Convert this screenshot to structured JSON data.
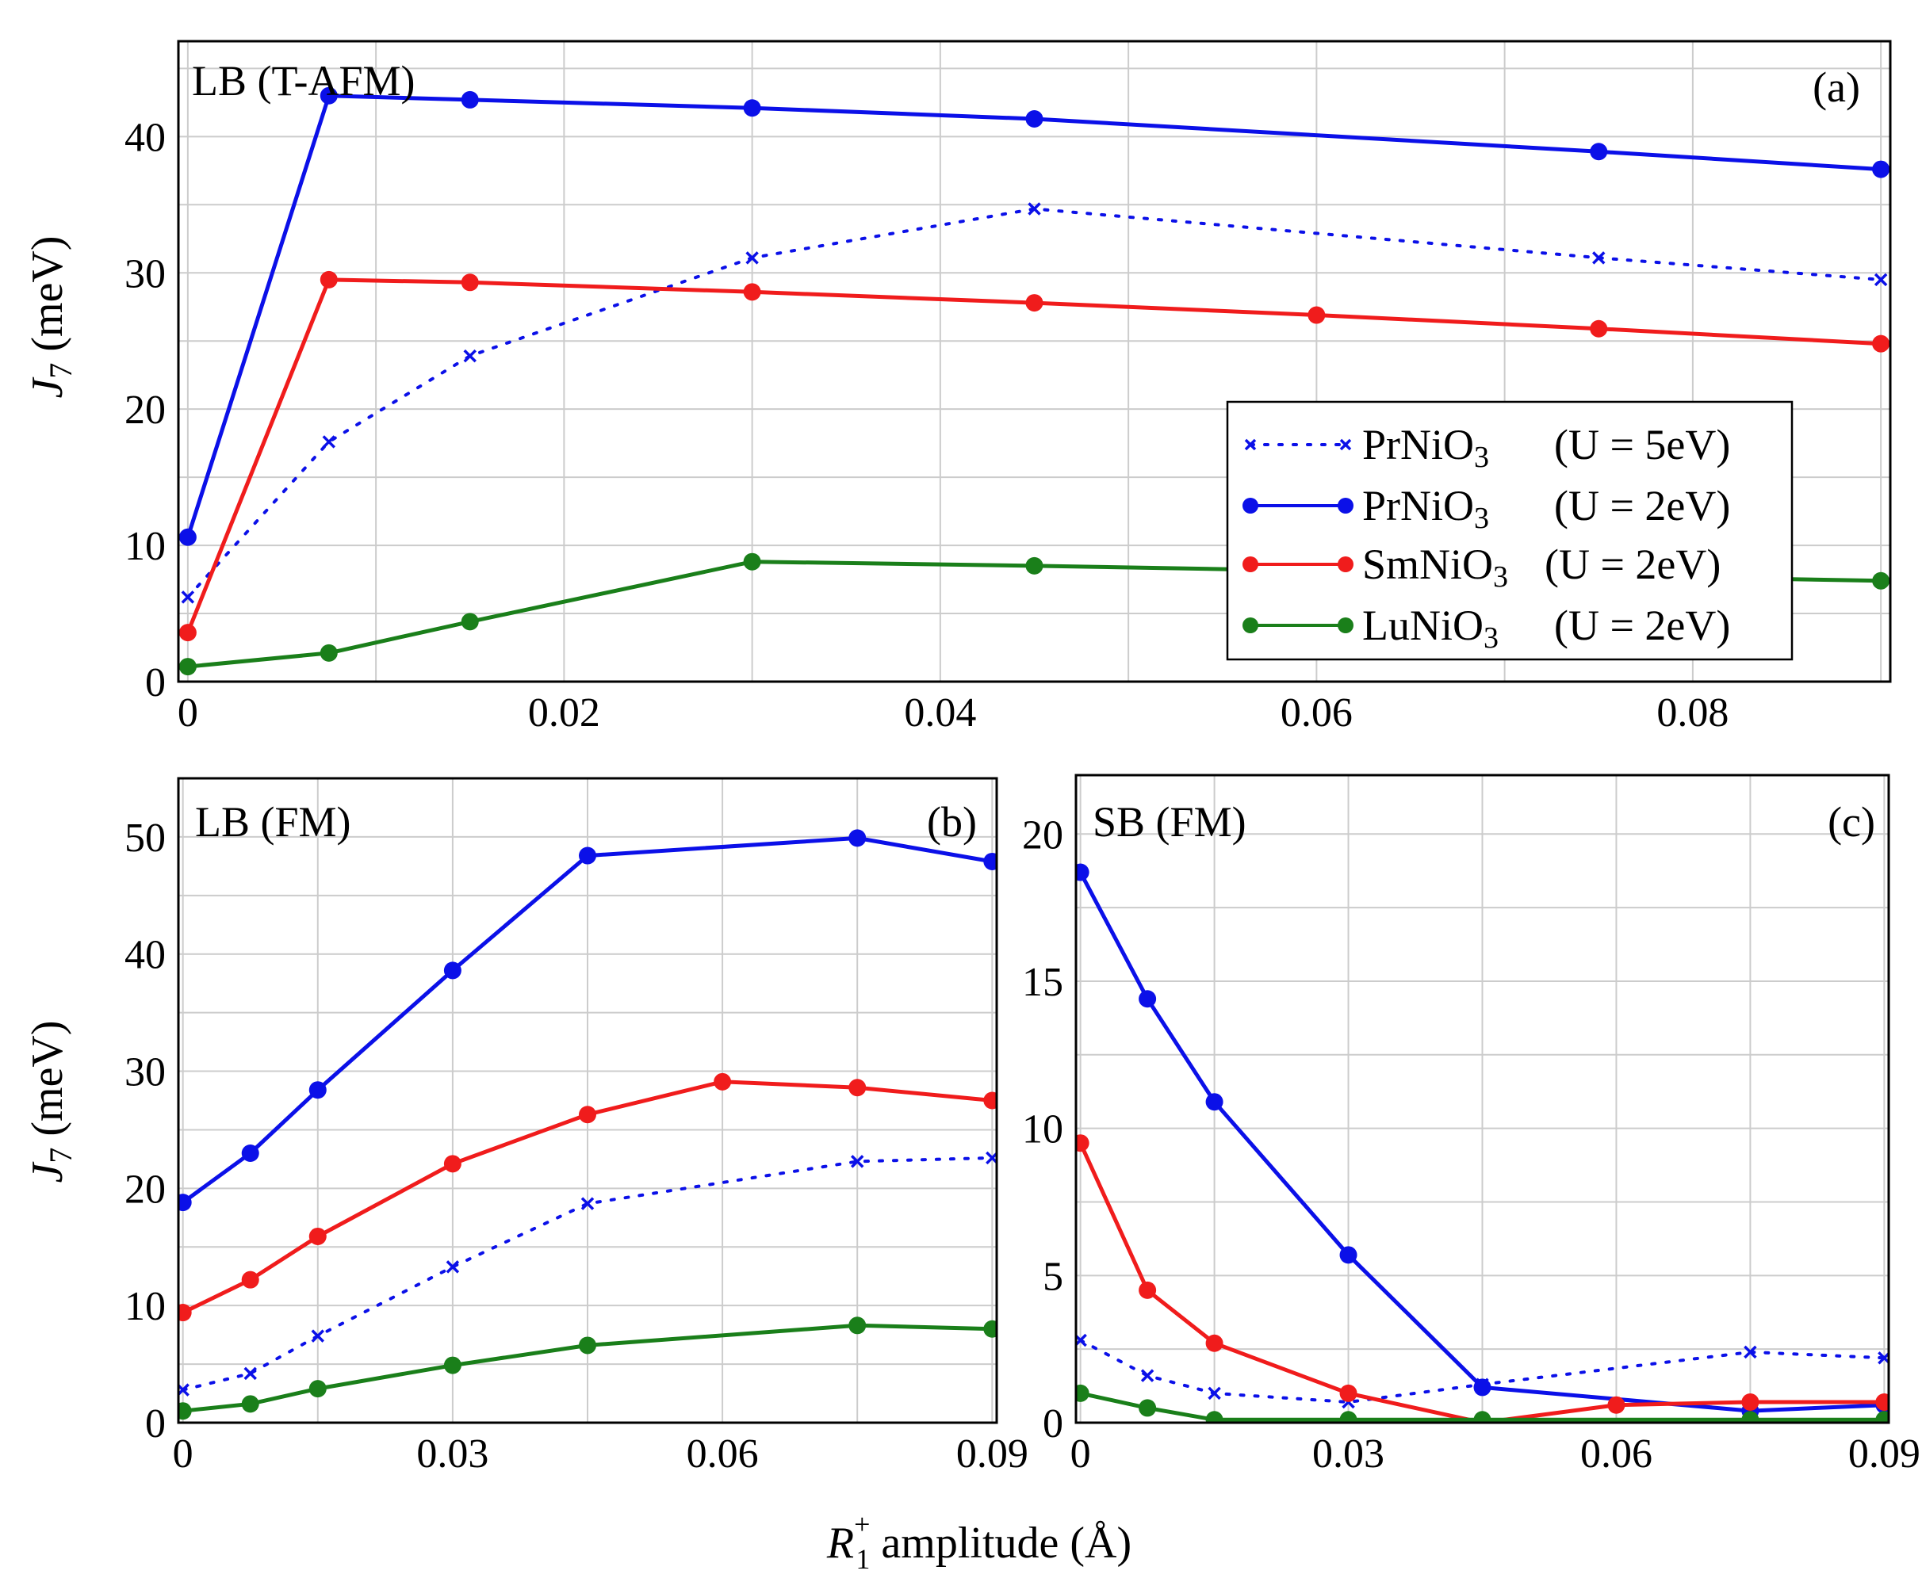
{
  "colors": {
    "blue": "#0b10e8",
    "red": "#f01c1c",
    "green": "#1a7f1a",
    "grid": "#cccccc",
    "frame": "#000000"
  },
  "chart_data": [
    {
      "id": "a",
      "type": "line",
      "panel_label": "(a)",
      "title": "LB (T-AFM)",
      "ylabel": "J7 (meV)",
      "ylabel_sym": "J",
      "ylabel_sub": "7",
      "ylabel_unit": " (meV)",
      "xlim": [
        -0.0005,
        0.0905
      ],
      "ylim": [
        0,
        47
      ],
      "xticks": [
        0,
        0.02,
        0.04,
        0.06,
        0.08
      ],
      "xtick_labels": [
        "0",
        "0.02",
        "0.04",
        "0.06",
        "0.08"
      ],
      "yticks": [
        0,
        10,
        20,
        30,
        40
      ],
      "ytick_labels": [
        "0",
        "10",
        "20",
        "30",
        "40"
      ],
      "xgrid": [
        0,
        0.01,
        0.02,
        0.03,
        0.04,
        0.05,
        0.06,
        0.07,
        0.08,
        0.09
      ],
      "ygrid": [
        0,
        5,
        10,
        15,
        20,
        25,
        30,
        35,
        40,
        45
      ],
      "legend": {
        "position": "lower-right",
        "entries": [
          {
            "name": "PrNiO",
            "sub": "3",
            "cond": "(U = 5eV)",
            "color_key": "blue",
            "style": "dotted",
            "marker": "x"
          },
          {
            "name": "PrNiO",
            "sub": "3",
            "cond": "(U = 2eV)",
            "color_key": "blue",
            "style": "solid",
            "marker": "circle"
          },
          {
            "name": "SmNiO",
            "sub": "3",
            "cond": "(U = 2eV)",
            "color_key": "red",
            "style": "solid",
            "marker": "circle"
          },
          {
            "name": "LuNiO",
            "sub": "3",
            "cond": "(U = 2eV)",
            "color_key": "green",
            "style": "solid",
            "marker": "circle"
          }
        ]
      },
      "series": [
        {
          "name": "PrNiO3 (U = 5eV)",
          "color_key": "blue",
          "style": "dotted",
          "marker": "x",
          "x": [
            0,
            0.0075,
            0.015,
            0.03,
            0.045,
            0.075,
            0.09
          ],
          "y": [
            6.2,
            17.6,
            23.9,
            31.1,
            34.7,
            31.1,
            29.5
          ]
        },
        {
          "name": "PrNiO3 (U = 2eV)",
          "color_key": "blue",
          "style": "solid",
          "marker": "circle",
          "x": [
            0,
            0.0075,
            0.015,
            0.03,
            0.045,
            0.075,
            0.09
          ],
          "y": [
            10.6,
            43.0,
            42.7,
            42.1,
            41.3,
            38.9,
            37.6
          ]
        },
        {
          "name": "SmNiO3 (U = 2eV)",
          "color_key": "red",
          "style": "solid",
          "marker": "circle",
          "x": [
            0,
            0.0075,
            0.015,
            0.03,
            0.045,
            0.06,
            0.075,
            0.09
          ],
          "y": [
            3.6,
            29.5,
            29.3,
            28.6,
            27.8,
            26.9,
            25.9,
            24.8
          ]
        },
        {
          "name": "LuNiO3 (U = 2eV)",
          "color_key": "green",
          "style": "solid",
          "marker": "circle",
          "x": [
            0,
            0.0075,
            0.015,
            0.03,
            0.045,
            0.09
          ],
          "y": [
            1.1,
            2.1,
            4.4,
            8.8,
            8.5,
            7.4
          ]
        }
      ]
    },
    {
      "id": "b",
      "type": "line",
      "panel_label": "(b)",
      "title": "LB (FM)",
      "ylabel": "J7 (meV)",
      "ylabel_sym": "J",
      "ylabel_sub": "7",
      "ylabel_unit": " (meV)",
      "xlim": [
        -0.0005,
        0.0905
      ],
      "ylim": [
        0,
        55
      ],
      "xticks": [
        0,
        0.03,
        0.06,
        0.09
      ],
      "xtick_labels": [
        "0",
        "0.03",
        "0.06",
        "0.09"
      ],
      "yticks": [
        0,
        10,
        20,
        30,
        40,
        50
      ],
      "ytick_labels": [
        "0",
        "10",
        "20",
        "30",
        "40",
        "50"
      ],
      "xgrid": [
        0,
        0.015,
        0.03,
        0.045,
        0.06,
        0.075,
        0.09
      ],
      "ygrid": [
        0,
        5,
        10,
        15,
        20,
        25,
        30,
        35,
        40,
        45,
        50,
        55
      ],
      "series": [
        {
          "name": "PrNiO3 (U = 5eV)",
          "color_key": "blue",
          "style": "dotted",
          "marker": "x",
          "x": [
            0,
            0.0075,
            0.015,
            0.03,
            0.045,
            0.075,
            0.09
          ],
          "y": [
            2.8,
            4.2,
            7.4,
            13.3,
            18.7,
            22.3,
            22.6
          ]
        },
        {
          "name": "PrNiO3 (U = 2eV)",
          "color_key": "blue",
          "style": "solid",
          "marker": "circle",
          "x": [
            0,
            0.0075,
            0.015,
            0.03,
            0.045,
            0.075,
            0.09
          ],
          "y": [
            18.8,
            23.0,
            28.4,
            38.6,
            48.4,
            49.9,
            47.9
          ]
        },
        {
          "name": "SmNiO3 (U = 2eV)",
          "color_key": "red",
          "style": "solid",
          "marker": "circle",
          "x": [
            0,
            0.0075,
            0.015,
            0.03,
            0.045,
            0.06,
            0.075,
            0.09
          ],
          "y": [
            9.4,
            12.2,
            15.9,
            22.1,
            26.3,
            29.1,
            28.6,
            27.5
          ]
        },
        {
          "name": "LuNiO3 (U = 2eV)",
          "color_key": "green",
          "style": "solid",
          "marker": "circle",
          "x": [
            0,
            0.0075,
            0.015,
            0.03,
            0.045,
            0.075,
            0.09
          ],
          "y": [
            1.0,
            1.6,
            2.9,
            4.9,
            6.6,
            8.3,
            8.0
          ]
        }
      ]
    },
    {
      "id": "c",
      "type": "line",
      "panel_label": "(c)",
      "title": "SB (FM)",
      "xlim": [
        -0.0005,
        0.0905
      ],
      "ylim": [
        0,
        22
      ],
      "xticks": [
        0,
        0.03,
        0.06,
        0.09
      ],
      "xtick_labels": [
        "0",
        "0.03",
        "0.06",
        "0.09"
      ],
      "yticks": [
        0,
        5,
        10,
        15,
        20
      ],
      "ytick_labels": [
        "0",
        "5",
        "10",
        "15",
        "20"
      ],
      "xgrid": [
        0,
        0.015,
        0.03,
        0.045,
        0.06,
        0.075,
        0.09
      ],
      "ygrid": [
        0,
        2.5,
        5,
        7.5,
        10,
        12.5,
        15,
        17.5,
        20
      ],
      "series": [
        {
          "name": "PrNiO3 (U = 5eV)",
          "color_key": "blue",
          "style": "dotted",
          "marker": "x",
          "x": [
            0,
            0.0075,
            0.015,
            0.03,
            0.045,
            0.075,
            0.09
          ],
          "y": [
            2.8,
            1.6,
            1.0,
            0.7,
            1.3,
            2.4,
            2.2
          ]
        },
        {
          "name": "PrNiO3 (U = 2eV)",
          "color_key": "blue",
          "style": "solid",
          "marker": "circle",
          "x": [
            0,
            0.0075,
            0.015,
            0.03,
            0.045,
            0.075,
            0.09
          ],
          "y": [
            18.7,
            14.4,
            10.9,
            5.7,
            1.2,
            0.4,
            0.6
          ]
        },
        {
          "name": "SmNiO3 (U = 2eV)",
          "color_key": "red",
          "style": "solid",
          "marker": "circle",
          "x": [
            0,
            0.0075,
            0.015,
            0.03,
            0.045,
            0.06,
            0.075,
            0.09
          ],
          "y": [
            9.5,
            4.5,
            2.7,
            1.0,
            0.0,
            0.6,
            0.7,
            0.7
          ]
        },
        {
          "name": "LuNiO3 (U = 2eV)",
          "color_key": "green",
          "style": "solid",
          "marker": "circle",
          "x": [
            0,
            0.0075,
            0.015,
            0.03,
            0.045,
            0.075,
            0.09
          ],
          "y": [
            1.0,
            0.5,
            0.1,
            0.1,
            0.1,
            0.1,
            0.1
          ]
        }
      ]
    }
  ],
  "shared_xlabel": {
    "sym": "R",
    "sup": "+",
    "sub": "1",
    "rest": " amplitude (Å)"
  }
}
